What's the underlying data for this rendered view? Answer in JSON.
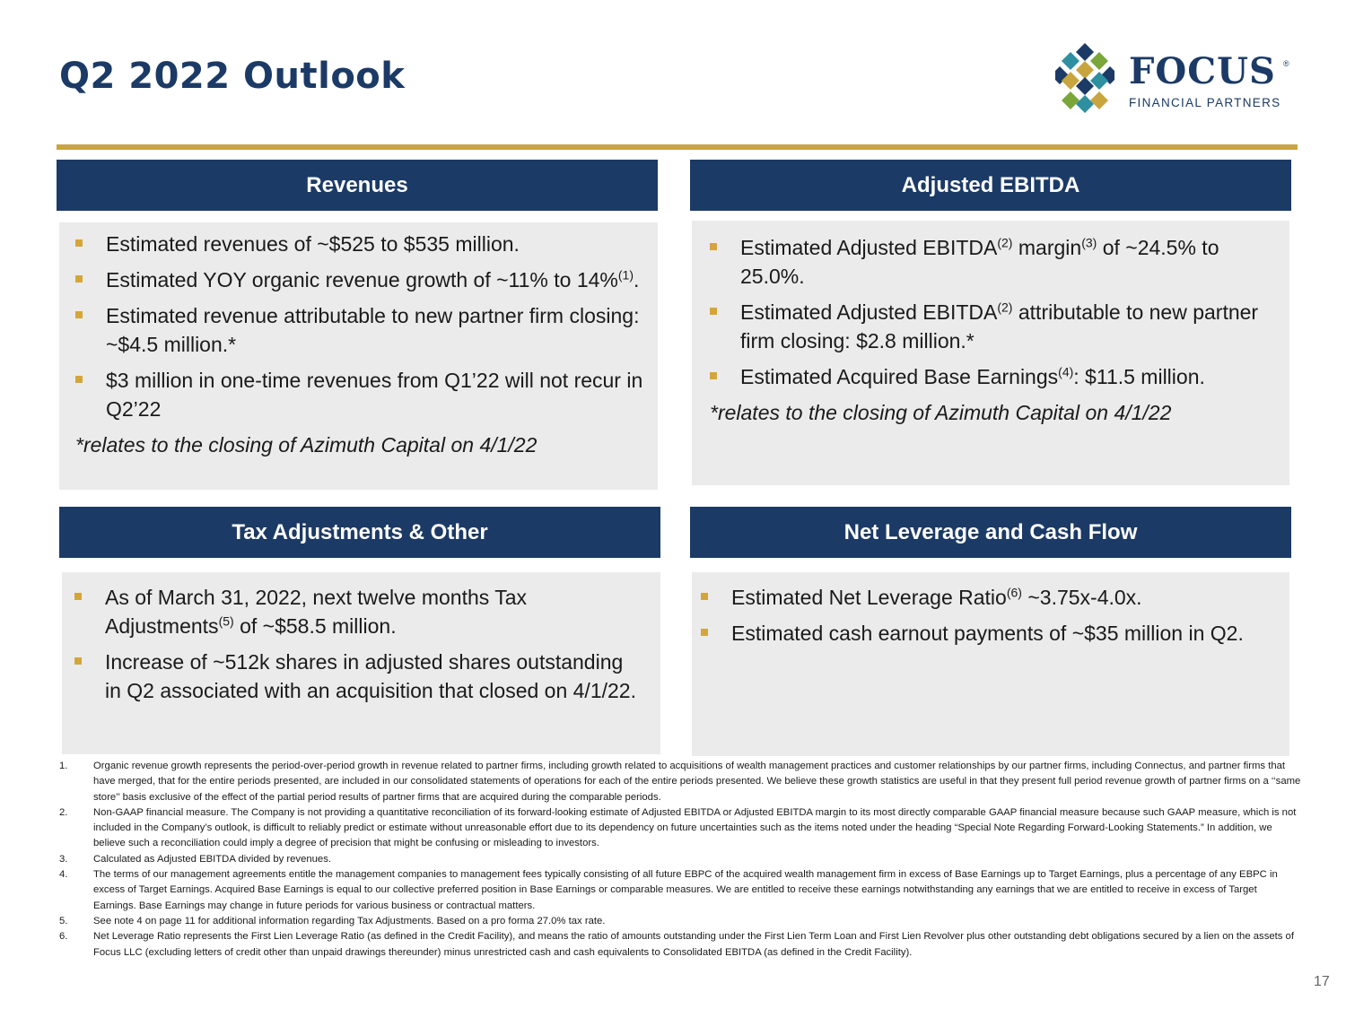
{
  "title": "Q2 2022 Outlook",
  "logo": {
    "name": "FOCUS",
    "registered": "®",
    "subtitle": "FINANCIAL PARTNERS"
  },
  "colors": {
    "navy": "#1b3a66",
    "gold": "#c9a540",
    "panel": "#ebebeb"
  },
  "revenues": {
    "header": "Revenues",
    "b1": "Estimated revenues of ~$525 to $535 million.",
    "b2_text": "Estimated YOY organic revenue growth of ~11% to 14%",
    "b2_sup": "(1)",
    "b2_end": ".",
    "b3": "Estimated revenue attributable to new partner firm closing: ~$4.5 million.*",
    "b4": "$3 million in one-time revenues from Q1’22 will not recur in Q2’22",
    "note": "*relates to the closing of Azimuth Capital on 4/1/22"
  },
  "ebitda": {
    "header": "Adjusted EBITDA",
    "b1_a": "Estimated Adjusted EBITDA",
    "b1_sup1": "(2)",
    "b1_b": " margin",
    "b1_sup2": "(3)",
    "b1_c": " of ~24.5% to 25.0%.",
    "b2_a": "Estimated Adjusted EBITDA",
    "b2_sup": "(2)",
    "b2_b": " attributable to new partner firm closing: $2.8 million.*",
    "b3_a": "Estimated Acquired Base Earnings",
    "b3_sup": "(4)",
    "b3_b": ": $11.5 million.",
    "note": "*relates to the closing of Azimuth Capital on 4/1/22"
  },
  "tax": {
    "header": "Tax Adjustments & Other",
    "b1_a": "As of March 31, 2022, next twelve months Tax Adjustments",
    "b1_sup": "(5)",
    "b1_b": " of ~$58.5 million.",
    "b2": "Increase of ~512k shares in adjusted shares outstanding in Q2 associated with an acquisition that closed on 4/1/22."
  },
  "leverage": {
    "header": "Net Leverage and Cash Flow",
    "b1_a": "Estimated Net Leverage Ratio",
    "b1_sup": "(6)",
    "b1_b": " ~3.75x-4.0x.",
    "b2": "Estimated cash earnout payments of ~$35 million in Q2."
  },
  "footnotes": [
    {
      "num": "1.",
      "text": "Organic revenue growth represents the period-over-period growth in revenue related to partner firms, including growth related to acquisitions of wealth management practices and customer relationships by our partner firms, including Connectus, and partner firms that have merged, that for the entire periods presented, are included in our consolidated statements of operations for each of the entire periods presented. We believe these growth statistics are useful in that they present full period revenue growth of partner firms on a ‘‘same store’’ basis exclusive of the effect of the partial period results of partner firms that are acquired during the comparable periods."
    },
    {
      "num": "2.",
      "text": "Non-GAAP financial measure. The Company is not providing a quantitative reconciliation of its forward-looking estimate of Adjusted EBITDA or Adjusted EBITDA margin to its most directly comparable GAAP financial measure because such GAAP measure, which is not included in the Company’s outlook, is difficult to reliably predict or estimate without unreasonable effort due to its dependency on future uncertainties such as the items noted under the heading “Special Note Regarding Forward-Looking Statements.” In addition, we believe such a reconciliation could imply a degree of precision that might be confusing or misleading to investors."
    },
    {
      "num": "3.",
      "text": "Calculated as Adjusted EBITDA divided by revenues."
    },
    {
      "num": "4.",
      "text": "The terms of our management agreements entitle the management companies to management fees typically consisting of all future EBPC of the acquired wealth management firm in excess of Base Earnings up to Target Earnings, plus a percentage of any EBPC in excess of Target Earnings. Acquired Base Earnings is equal to our collective preferred position in Base Earnings or comparable measures. We are entitled to receive these earnings notwithstanding any earnings that we are entitled to receive in excess of Target Earnings. Base Earnings may change in future periods for various business or contractual matters."
    },
    {
      "num": "5.",
      "text": "See note 4 on page 11 for additional information regarding Tax Adjustments. Based on a pro forma 27.0% tax rate."
    },
    {
      "num": "6.",
      "text": "Net Leverage Ratio represents the First Lien Leverage Ratio (as defined in the Credit Facility), and means the ratio of amounts outstanding under the First Lien Term Loan and First Lien Revolver plus other outstanding debt obligations secured by a lien on the assets of Focus LLC (excluding letters of credit other than unpaid drawings thereunder) minus unrestricted cash and cash equivalents to Consolidated EBITDA (as defined in the Credit Facility)."
    }
  ],
  "page_number": "17"
}
